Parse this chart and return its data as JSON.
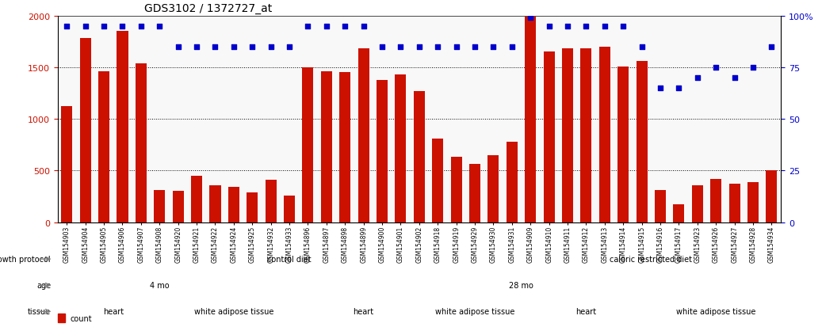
{
  "title": "GDS3102 / 1372727_at",
  "samples": [
    "GSM154903",
    "GSM154904",
    "GSM154905",
    "GSM154906",
    "GSM154907",
    "GSM154908",
    "GSM154920",
    "GSM154921",
    "GSM154922",
    "GSM154924",
    "GSM154925",
    "GSM154932",
    "GSM154933",
    "GSM154896",
    "GSM154897",
    "GSM154898",
    "GSM154899",
    "GSM154900",
    "GSM154901",
    "GSM154902",
    "GSM154918",
    "GSM154919",
    "GSM154929",
    "GSM154930",
    "GSM154931",
    "GSM154909",
    "GSM154910",
    "GSM154911",
    "GSM154912",
    "GSM154913",
    "GSM154914",
    "GSM154915",
    "GSM154916",
    "GSM154917",
    "GSM154923",
    "GSM154926",
    "GSM154927",
    "GSM154928",
    "GSM154934"
  ],
  "counts": [
    1120,
    1780,
    1460,
    1850,
    1540,
    310,
    300,
    450,
    360,
    340,
    290,
    410,
    260,
    1500,
    1460,
    1450,
    1680,
    1380,
    1430,
    1270,
    810,
    630,
    560,
    650,
    780,
    1990,
    1650,
    1680,
    1680,
    1700,
    1510,
    1560,
    310,
    175,
    355,
    420,
    370,
    390,
    500
  ],
  "percentiles": [
    95,
    95,
    95,
    95,
    95,
    95,
    85,
    85,
    85,
    85,
    85,
    85,
    85,
    95,
    95,
    95,
    95,
    85,
    85,
    85,
    85,
    85,
    85,
    85,
    85,
    99,
    95,
    95,
    95,
    95,
    95,
    85,
    65,
    65,
    70,
    75,
    70,
    75,
    85
  ],
  "bar_color": "#cc1100",
  "dot_color": "#0000cc",
  "ylim_left": [
    0,
    2000
  ],
  "ylim_right": [
    0,
    100
  ],
  "yticks_left": [
    0,
    500,
    1000,
    1500,
    2000
  ],
  "yticks_right": [
    0,
    25,
    50,
    75,
    100
  ],
  "growth_protocol_bands": [
    {
      "label": "control diet",
      "start": 0,
      "end": 25,
      "color": "#aaddaa"
    },
    {
      "label": "caloric restricted diet",
      "start": 25,
      "end": 39,
      "color": "#55cc55"
    }
  ],
  "age_bands": [
    {
      "label": "4 mo",
      "start": 0,
      "end": 11,
      "color": "#aaaadd"
    },
    {
      "label": "28 mo",
      "start": 11,
      "end": 39,
      "color": "#6666bb"
    }
  ],
  "tissue_bands": [
    {
      "label": "heart",
      "start": 0,
      "end": 6,
      "color": "#ffaaaa"
    },
    {
      "label": "white adipose tissue",
      "start": 6,
      "end": 13,
      "color": "#ffbbbb"
    },
    {
      "label": "heart",
      "start": 13,
      "end": 20,
      "color": "#ffaaaa"
    },
    {
      "label": "white adipose tissue",
      "start": 20,
      "end": 25,
      "color": "#ffbbbb"
    },
    {
      "label": "heart",
      "start": 25,
      "end": 32,
      "color": "#ffaaaa"
    },
    {
      "label": "white adipose tissue",
      "start": 32,
      "end": 39,
      "color": "#ffbbbb"
    }
  ],
  "legend_count_color": "#cc1100",
  "legend_dot_color": "#0000cc",
  "background_color": "#ffffff"
}
